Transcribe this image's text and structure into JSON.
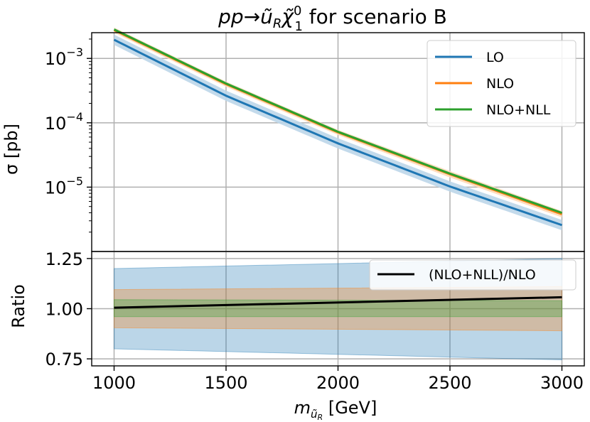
{
  "figure": {
    "title_main": "pp→ũ",
    "title_sub": "R",
    "title_chi": "χ̃",
    "title_chi_sup": "0",
    "title_chi_sub": "1",
    "title_rest": " for scenario B"
  },
  "chart_data": [
    {
      "type": "line",
      "panel": "top",
      "yscale": "log",
      "xlim": [
        900,
        3100
      ],
      "ylim_log10": [
        -6.0,
        -2.6
      ],
      "ylabel": "σ [pb]",
      "xticks": [
        1000,
        1500,
        2000,
        2500,
        3000
      ],
      "ytick_labels": [
        {
          "base": "10",
          "exp": "−3",
          "value_log10": -3
        },
        {
          "base": "10",
          "exp": "−4",
          "value_log10": -4
        },
        {
          "base": "10",
          "exp": "−5",
          "value_log10": -5
        }
      ],
      "grid": true,
      "legend_position": "top-right",
      "x": [
        1000,
        1500,
        2000,
        2500,
        3000
      ],
      "series": [
        {
          "name": "LO",
          "color": "#1f77b4",
          "log10_central": [
            -2.71,
            -3.58,
            -4.32,
            -4.99,
            -5.59
          ],
          "log10_band_low": [
            -2.79,
            -3.66,
            -4.4,
            -5.07,
            -5.67
          ],
          "log10_band_high": [
            -2.63,
            -3.5,
            -4.24,
            -4.91,
            -5.51
          ]
        },
        {
          "name": "NLO",
          "color": "#ff7f0e",
          "log10_central": [
            -2.56,
            -3.4,
            -4.15,
            -4.8,
            -5.42
          ],
          "log10_band_low": [
            -2.6,
            -3.44,
            -4.19,
            -4.85,
            -5.47
          ],
          "log10_band_high": [
            -2.52,
            -3.36,
            -4.11,
            -4.75,
            -5.37
          ]
        },
        {
          "name": "NLO+NLL",
          "color": "#2ca02c",
          "log10_central": [
            -2.55,
            -3.39,
            -4.14,
            -4.79,
            -5.4
          ],
          "log10_band_low": [
            -2.57,
            -3.41,
            -4.16,
            -4.81,
            -5.42
          ],
          "log10_band_high": [
            -2.53,
            -3.37,
            -4.12,
            -4.77,
            -5.38
          ]
        }
      ]
    },
    {
      "type": "area",
      "panel": "bottom",
      "xlim": [
        900,
        3100
      ],
      "ylim": [
        0.715,
        1.285
      ],
      "xlabel_main": "m",
      "xlabel_sub1": "ũ",
      "xlabel_sub2": "R",
      "xlabel_unit": " [GeV]",
      "ylabel": "Ratio",
      "xticks": [
        1000,
        1500,
        2000,
        2500,
        3000
      ],
      "yticks": [
        0.75,
        1.0,
        1.25
      ],
      "ytick_labels": [
        "0.75",
        "1.00",
        "1.25"
      ],
      "grid": true,
      "legend_position": "top-right",
      "x": [
        1000,
        3000
      ],
      "bands": [
        {
          "name": "LO",
          "color": "#1f77b4",
          "low": [
            0.8,
            0.745
          ],
          "high": [
            1.2,
            1.25
          ]
        },
        {
          "name": "NLO",
          "color": "#ff7f0e",
          "low": [
            0.905,
            0.89
          ],
          "high": [
            1.095,
            1.11
          ]
        },
        {
          "name": "NLO+NLL",
          "color": "#2ca02c",
          "low": [
            0.96,
            0.96
          ],
          "high": [
            1.045,
            1.04
          ]
        }
      ],
      "series": [
        {
          "name": "(NLO+NLL)/NLO",
          "color": "#000000",
          "values": [
            1.005,
            1.057
          ]
        }
      ]
    }
  ]
}
